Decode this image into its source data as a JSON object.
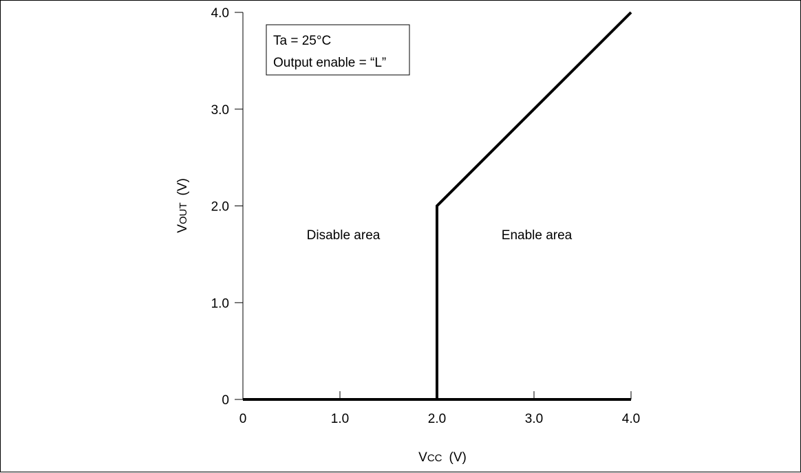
{
  "chart_data": {
    "type": "line",
    "title": "",
    "xlabel": {
      "main": "V",
      "sub": "CC",
      "unit": "(V)"
    },
    "ylabel": {
      "main": "V",
      "sub": "OUT",
      "unit": "(V)"
    },
    "xlim": [
      0,
      4
    ],
    "ylim": [
      0,
      4
    ],
    "x_ticks": [
      "0",
      "1.0",
      "2.0",
      "3.0",
      "4.0"
    ],
    "y_ticks": [
      "0",
      "1.0",
      "2.0",
      "3.0",
      "4.0"
    ],
    "grid": false,
    "series": [
      {
        "x": [
          0,
          2.0,
          2.0,
          4.0
        ],
        "y": [
          0,
          0,
          2.0,
          4.0
        ]
      },
      {
        "x": [
          2.0,
          4.0
        ],
        "y": [
          0,
          0
        ]
      }
    ],
    "legend": {
      "placement": "top-left",
      "lines": [
        "Ta = 25°C",
        "Output enable = “L”"
      ]
    },
    "annotations": [
      {
        "text": "Disable area",
        "x": 1.0,
        "y": 1.7
      },
      {
        "text": "Enable area",
        "x": 3.0,
        "y": 1.7
      }
    ],
    "line_color": "#000000"
  }
}
